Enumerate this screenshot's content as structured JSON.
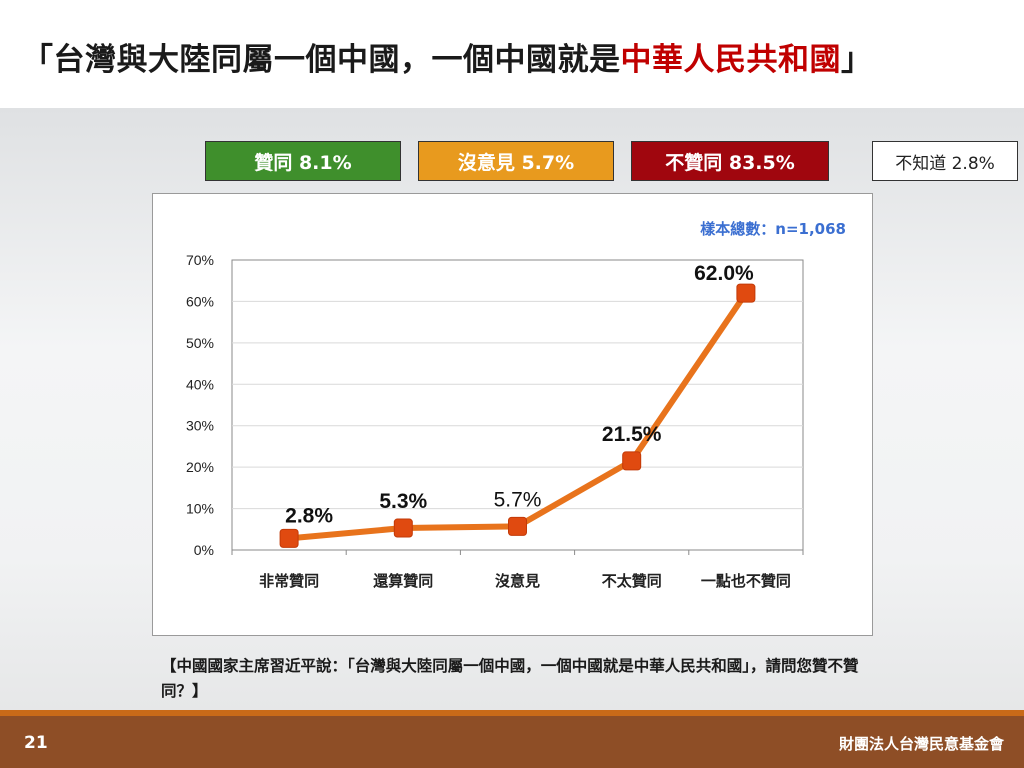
{
  "title": {
    "part1": "「台灣與大陸同屬一個中國，一個中國就是",
    "part2": "中華人民共和國",
    "part3": "」"
  },
  "summary": {
    "agree": "贊同 8.1%",
    "neutral": "沒意見 5.7%",
    "disagree": "不贊同 83.5%",
    "unknown": "不知道 2.8%"
  },
  "sample_size": "樣本總數：n=1,068",
  "question": "【中國國家主席習近平說：「台灣與大陸同屬一個中國，一個中國就是中華人民共和國」，請問您贊不贊同？】",
  "footer": {
    "page_number": "21",
    "org": "財團法人台灣民意基金會"
  },
  "colors": {
    "line": "#e8731c",
    "marker": "#e04a10",
    "title_red": "#c00000",
    "agree": "#3f8f2c",
    "neutral": "#e89a1e",
    "disagree": "#a0060e",
    "footer": "#8e4e26"
  },
  "chart_data": {
    "type": "line",
    "categories": [
      "非常贊同",
      "還算贊同",
      "沒意見",
      "不太贊同",
      "一點也不贊同"
    ],
    "values": [
      2.8,
      5.3,
      5.7,
      21.5,
      62.0
    ],
    "data_labels": [
      "2.8%",
      "5.3%",
      "5.7%",
      "21.5%",
      "62.0%"
    ],
    "label_bold": [
      true,
      true,
      false,
      true,
      true
    ],
    "yticks": [
      "0%",
      "10%",
      "20%",
      "30%",
      "40%",
      "50%",
      "60%",
      "70%"
    ],
    "ylim": [
      0,
      70
    ],
    "grid": true
  }
}
